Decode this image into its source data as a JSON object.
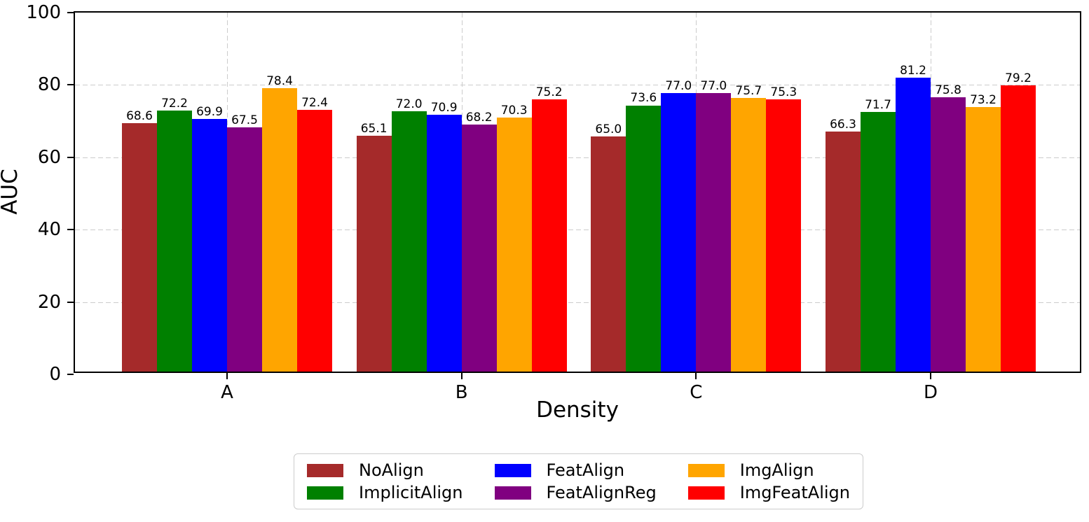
{
  "chart_data": {
    "type": "bar",
    "categories": [
      "A",
      "B",
      "C",
      "D"
    ],
    "series": [
      {
        "name": "NoAlign",
        "color": "#A52A2A",
        "values": [
          68.6,
          65.1,
          65.0,
          66.3
        ]
      },
      {
        "name": "ImplicitAlign",
        "color": "#008000",
        "values": [
          72.2,
          72.0,
          73.6,
          71.7
        ]
      },
      {
        "name": "FeatAlign",
        "color": "#0000FF",
        "values": [
          69.9,
          70.9,
          77.0,
          81.2
        ]
      },
      {
        "name": "FeatAlignReg",
        "color": "#800080",
        "values": [
          67.5,
          68.2,
          77.0,
          75.8
        ]
      },
      {
        "name": "ImgAlign",
        "color": "#FFA500",
        "values": [
          78.4,
          70.3,
          75.7,
          73.2
        ]
      },
      {
        "name": "ImgFeatAlign",
        "color": "#FF0000",
        "values": [
          72.4,
          75.2,
          75.3,
          79.2
        ]
      }
    ],
    "title": "",
    "xlabel": "Density",
    "ylabel": "AUC",
    "ylim": [
      0,
      100
    ],
    "yticks": [
      0,
      20,
      40,
      60,
      80,
      100
    ],
    "grid": true,
    "grid_color": "#cccccc",
    "axis_color": "#000000",
    "legend_position": "bottom",
    "value_label_decimals": 1
  }
}
